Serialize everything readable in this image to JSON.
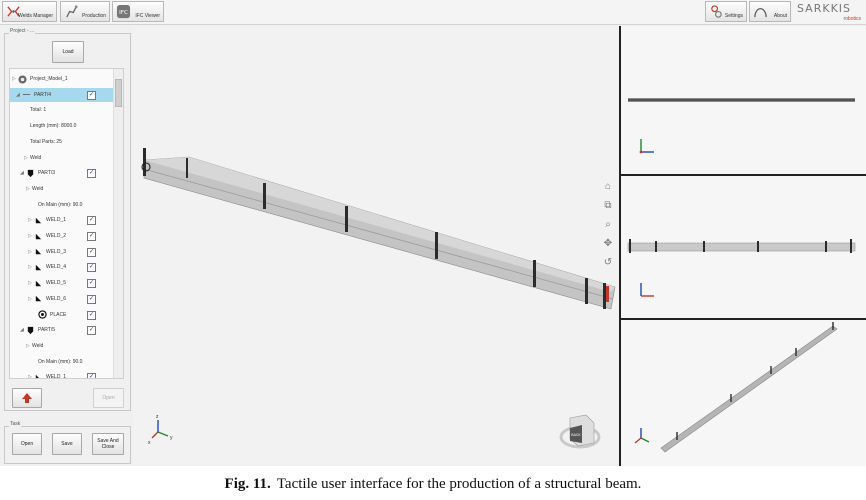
{
  "toolbar": {
    "welds_manager": "Welds Manager",
    "production": "Production",
    "ifc_viewer": "IFC Viewer",
    "settings": "Settings",
    "about": "About",
    "brand": "SARKKIS",
    "brand_sub": "robotics"
  },
  "project_panel": {
    "legend": "Project - ...",
    "load_label": "Load",
    "open_label": "Open"
  },
  "tree": {
    "rows": [
      {
        "label": "Project_Model_1",
        "expander": "▷",
        "icon": "project-icon",
        "checked": false
      },
      {
        "label": "PART/4",
        "expander": "◢",
        "icon": "beam-icon",
        "checked": true,
        "selected": true
      },
      {
        "label": "Total: 1",
        "expander": "",
        "icon": "",
        "checked": false
      },
      {
        "label": "Length (mm): 8000.0",
        "expander": "",
        "icon": "",
        "checked": false
      },
      {
        "label": "Total Parts: 25",
        "expander": "",
        "icon": "",
        "checked": false
      },
      {
        "label": "Weld",
        "expander": "▷",
        "icon": "",
        "checked": false
      },
      {
        "label": "PART/3",
        "expander": "◢",
        "icon": "part-icon",
        "checked": true
      },
      {
        "label": "Weld",
        "expander": "▷",
        "icon": "",
        "checked": false
      },
      {
        "label": "On Main (mm): 90.0",
        "expander": "",
        "icon": "",
        "checked": false
      },
      {
        "label": "WELD_1",
        "expander": "▷",
        "icon": "weld-icon",
        "checked": true
      },
      {
        "label": "WELD_2",
        "expander": "▷",
        "icon": "weld-icon",
        "checked": true
      },
      {
        "label": "WELD_3",
        "expander": "▷",
        "icon": "weld-icon",
        "checked": true
      },
      {
        "label": "WELD_4",
        "expander": "▷",
        "icon": "weld-icon",
        "checked": true
      },
      {
        "label": "WELD_5",
        "expander": "▷",
        "icon": "weld-icon",
        "checked": true
      },
      {
        "label": "WELD_6",
        "expander": "▷",
        "icon": "weld-icon",
        "checked": true
      },
      {
        "label": "PLACE",
        "expander": "",
        "icon": "place-icon",
        "checked": true
      },
      {
        "label": "PART/5",
        "expander": "◢",
        "icon": "part-icon",
        "checked": true
      },
      {
        "label": "Weld",
        "expander": "▷",
        "icon": "",
        "checked": false
      },
      {
        "label": "On Main (mm): 90.0",
        "expander": "",
        "icon": "",
        "checked": false
      },
      {
        "label": "WELD_1",
        "expander": "▷",
        "icon": "weld-icon",
        "checked": true
      },
      {
        "label": "WELD_2",
        "expander": "▷",
        "icon": "weld-icon",
        "checked": true
      },
      {
        "label": "WELD_3",
        "expander": "▷",
        "icon": "weld-icon",
        "checked": true
      }
    ]
  },
  "task_panel": {
    "legend": "Task",
    "open_label": "Open",
    "save_label": "Save",
    "save_close_line1": "Save And",
    "save_close_line2": "Close"
  },
  "viewer": {
    "tools": [
      "home-icon",
      "zoom-window-icon",
      "zoom-icon",
      "pan-icon",
      "rotate-icon"
    ],
    "axis_x": "x",
    "axis_y": "y",
    "axis_z": "z",
    "cube_face": "BACK"
  },
  "colors": {
    "beam": "#b9b9b9",
    "plate": "#2b2b2b",
    "selection": "#a6d8ee",
    "brand_accent": "#c0392b"
  },
  "caption": {
    "label": "Fig. 11.",
    "text": "Tactile user interface for the production of a structural beam."
  }
}
